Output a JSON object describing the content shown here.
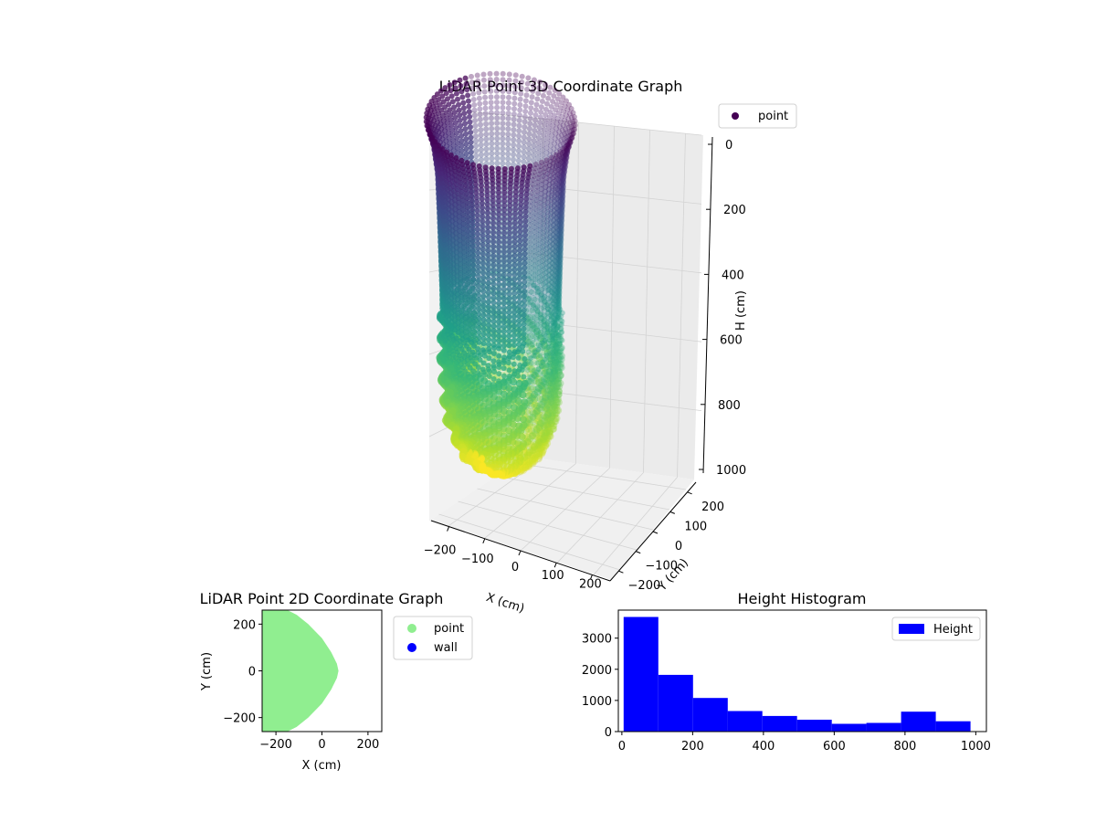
{
  "chart_data": [
    {
      "type": "scatter",
      "projection": "3d",
      "title": "LiDAR Point 3D Coordinate Graph",
      "xlabel": "X (cm)",
      "ylabel": "Y (cm)",
      "zlabel": "H (cm)",
      "xlim": [
        -250,
        250
      ],
      "ylim": [
        -250,
        250
      ],
      "zlim": [
        1000,
        0
      ],
      "xticks": [
        "−200",
        "−100",
        "0",
        "100",
        "200"
      ],
      "yticks": [
        "−200",
        "−100",
        "0",
        "100",
        "200"
      ],
      "zticks": [
        "0",
        "200",
        "400",
        "600",
        "800",
        "1000"
      ],
      "grid": true,
      "colormap": "viridis",
      "legend": {
        "placement": "upper-right",
        "entries": [
          {
            "label": "point",
            "color": "#440154"
          }
        ]
      },
      "series": [
        {
          "name": "point",
          "shape": "cylindrical shell with flared rim",
          "profile": [
            {
              "h": 0,
              "radius": 165
            },
            {
              "h": 60,
              "radius": 150
            },
            {
              "h": 150,
              "radius": 140
            },
            {
              "h": 300,
              "radius": 135
            },
            {
              "h": 500,
              "radius": 130
            },
            {
              "h": 700,
              "radius": 128
            },
            {
              "h": 850,
              "radius": 120
            },
            {
              "h": 950,
              "radius": 90
            },
            {
              "h": 1000,
              "radius": 40
            }
          ]
        }
      ]
    },
    {
      "type": "scatter",
      "title": "LiDAR Point 2D Coordinate Graph",
      "xlabel": "X (cm)",
      "ylabel": "Y (cm)",
      "xlim": [
        -260,
        260
      ],
      "ylim": [
        -260,
        260
      ],
      "xticks": [
        "−200",
        "0",
        "200"
      ],
      "yticks": [
        "−200",
        "0",
        "200"
      ],
      "grid": false,
      "legend": {
        "placement": "outside-right",
        "entries": [
          {
            "label": "point",
            "color": "#90ee90"
          },
          {
            "label": "wall",
            "color": "#0000ff"
          }
        ]
      },
      "series": [
        {
          "name": "point",
          "color": "#90ee90",
          "region_boundary": [
            {
              "x": -260,
              "y": 260
            },
            {
              "x": -150,
              "y": 260
            },
            {
              "x": -110,
              "y": 240
            },
            {
              "x": -60,
              "y": 200
            },
            {
              "x": 0,
              "y": 140
            },
            {
              "x": 40,
              "y": 80
            },
            {
              "x": 65,
              "y": 30
            },
            {
              "x": 72,
              "y": 0
            },
            {
              "x": 65,
              "y": -30
            },
            {
              "x": 40,
              "y": -80
            },
            {
              "x": 0,
              "y": -140
            },
            {
              "x": -60,
              "y": -200
            },
            {
              "x": -110,
              "y": -240
            },
            {
              "x": -150,
              "y": -260
            },
            {
              "x": -260,
              "y": -260
            }
          ]
        },
        {
          "name": "wall",
          "color": "#0000ff",
          "points": []
        }
      ]
    },
    {
      "type": "bar",
      "subtype": "histogram",
      "title": "Height Histogram",
      "xlim": [
        -10,
        1030
      ],
      "ylim": [
        0,
        3900
      ],
      "xticks": [
        "0",
        "200",
        "400",
        "600",
        "800",
        "1000"
      ],
      "yticks": [
        "0",
        "1000",
        "2000",
        "3000"
      ],
      "legend": {
        "placement": "upper-right",
        "entries": [
          {
            "label": "Height",
            "color": "#0000ff"
          }
        ]
      },
      "series": [
        {
          "name": "Height",
          "color": "#0000ff",
          "bin_edges": [
            5,
            103,
            201,
            299,
            397,
            495,
            593,
            691,
            789,
            887,
            985
          ],
          "values": [
            3680,
            1820,
            1080,
            660,
            500,
            380,
            250,
            280,
            640,
            330
          ]
        }
      ]
    }
  ]
}
